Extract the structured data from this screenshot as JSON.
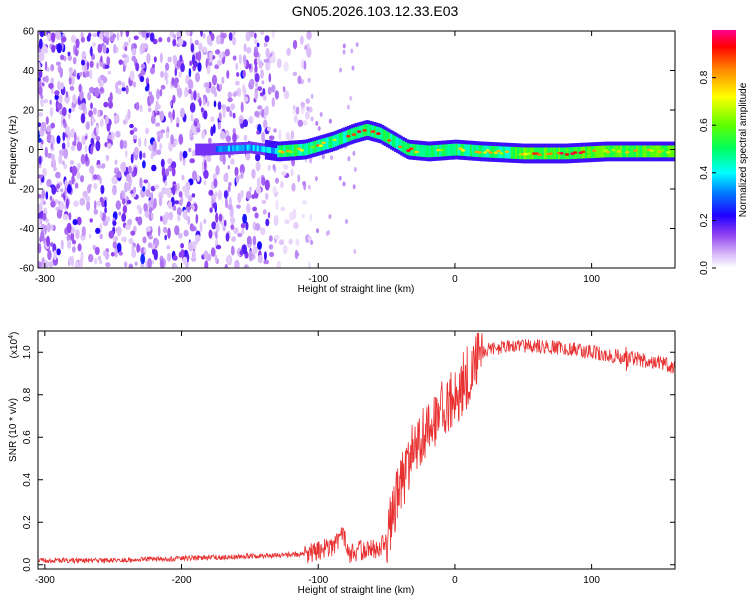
{
  "title": "GN05.2026.103.12.33.E03",
  "chart_data": [
    {
      "type": "heatmap",
      "xlabel": "Height of straight line (km)",
      "ylabel": "Frequency (Hz)",
      "xlim": [
        -305,
        161
      ],
      "ylim": [
        -60,
        60
      ],
      "x_ticks": [
        -300,
        -200,
        -100,
        0,
        100
      ],
      "y_ticks": [
        -60,
        -40,
        -20,
        0,
        20,
        40,
        60
      ],
      "colorbar": {
        "label": "Normalized spectral amplitude",
        "range": [
          0,
          1
        ],
        "ticks": [
          0.0,
          0.2,
          0.4,
          0.6,
          0.8
        ]
      },
      "ridge_center_hz": {
        "x": [
          -180,
          -150,
          -130,
          -110,
          -90,
          -75,
          -65,
          -55,
          -45,
          -35,
          -20,
          0,
          20,
          50,
          80,
          110,
          161
        ],
        "y": [
          0,
          1,
          -1,
          0,
          4,
          8,
          10,
          8,
          4,
          0,
          -1,
          0,
          -1,
          -2,
          -2,
          -1,
          -1
        ]
      },
      "colors": {
        "scale": [
          "#ffffff",
          "#d8b8f8",
          "#a060f0",
          "#6000e0",
          "#0020ff",
          "#00c8ff",
          "#00ff80",
          "#80ff00",
          "#ffff00",
          "#ff8000",
          "#ff0000",
          "#ff0090"
        ]
      }
    },
    {
      "type": "line",
      "xlabel": "Height of straight line (km)",
      "ylabel": "SNR (10 * v/v)",
      "multiplier": "(x10",
      "multiplier_exp": "4",
      "xlim": [
        -305,
        161
      ],
      "ylim": [
        -0.02,
        1.1
      ],
      "x_ticks": [
        -300,
        -200,
        -100,
        0,
        100
      ],
      "y_ticks": [
        0.0,
        0.2,
        0.4,
        0.6,
        0.8,
        1.0
      ],
      "series": [
        {
          "color": "#e83030",
          "x": [
            -305,
            -250,
            -200,
            -150,
            -110,
            -100,
            -90,
            -82,
            -77,
            -70,
            -60,
            -50,
            -45,
            -40,
            -35,
            -30,
            -25,
            -20,
            -15,
            -10,
            -5,
            0,
            5,
            10,
            15,
            20,
            25,
            30,
            40,
            60,
            80,
            100,
            110,
            120,
            130,
            140,
            150,
            161
          ],
          "y": [
            0.02,
            0.02,
            0.03,
            0.04,
            0.05,
            0.06,
            0.09,
            0.14,
            0.05,
            0.07,
            0.07,
            0.1,
            0.25,
            0.38,
            0.45,
            0.55,
            0.58,
            0.66,
            0.68,
            0.72,
            0.76,
            0.78,
            0.82,
            0.88,
            0.96,
            1.0,
            1.01,
            1.02,
            1.03,
            1.03,
            1.02,
            1.0,
            0.99,
            0.98,
            0.97,
            0.96,
            0.95,
            0.93
          ]
        }
      ]
    }
  ]
}
